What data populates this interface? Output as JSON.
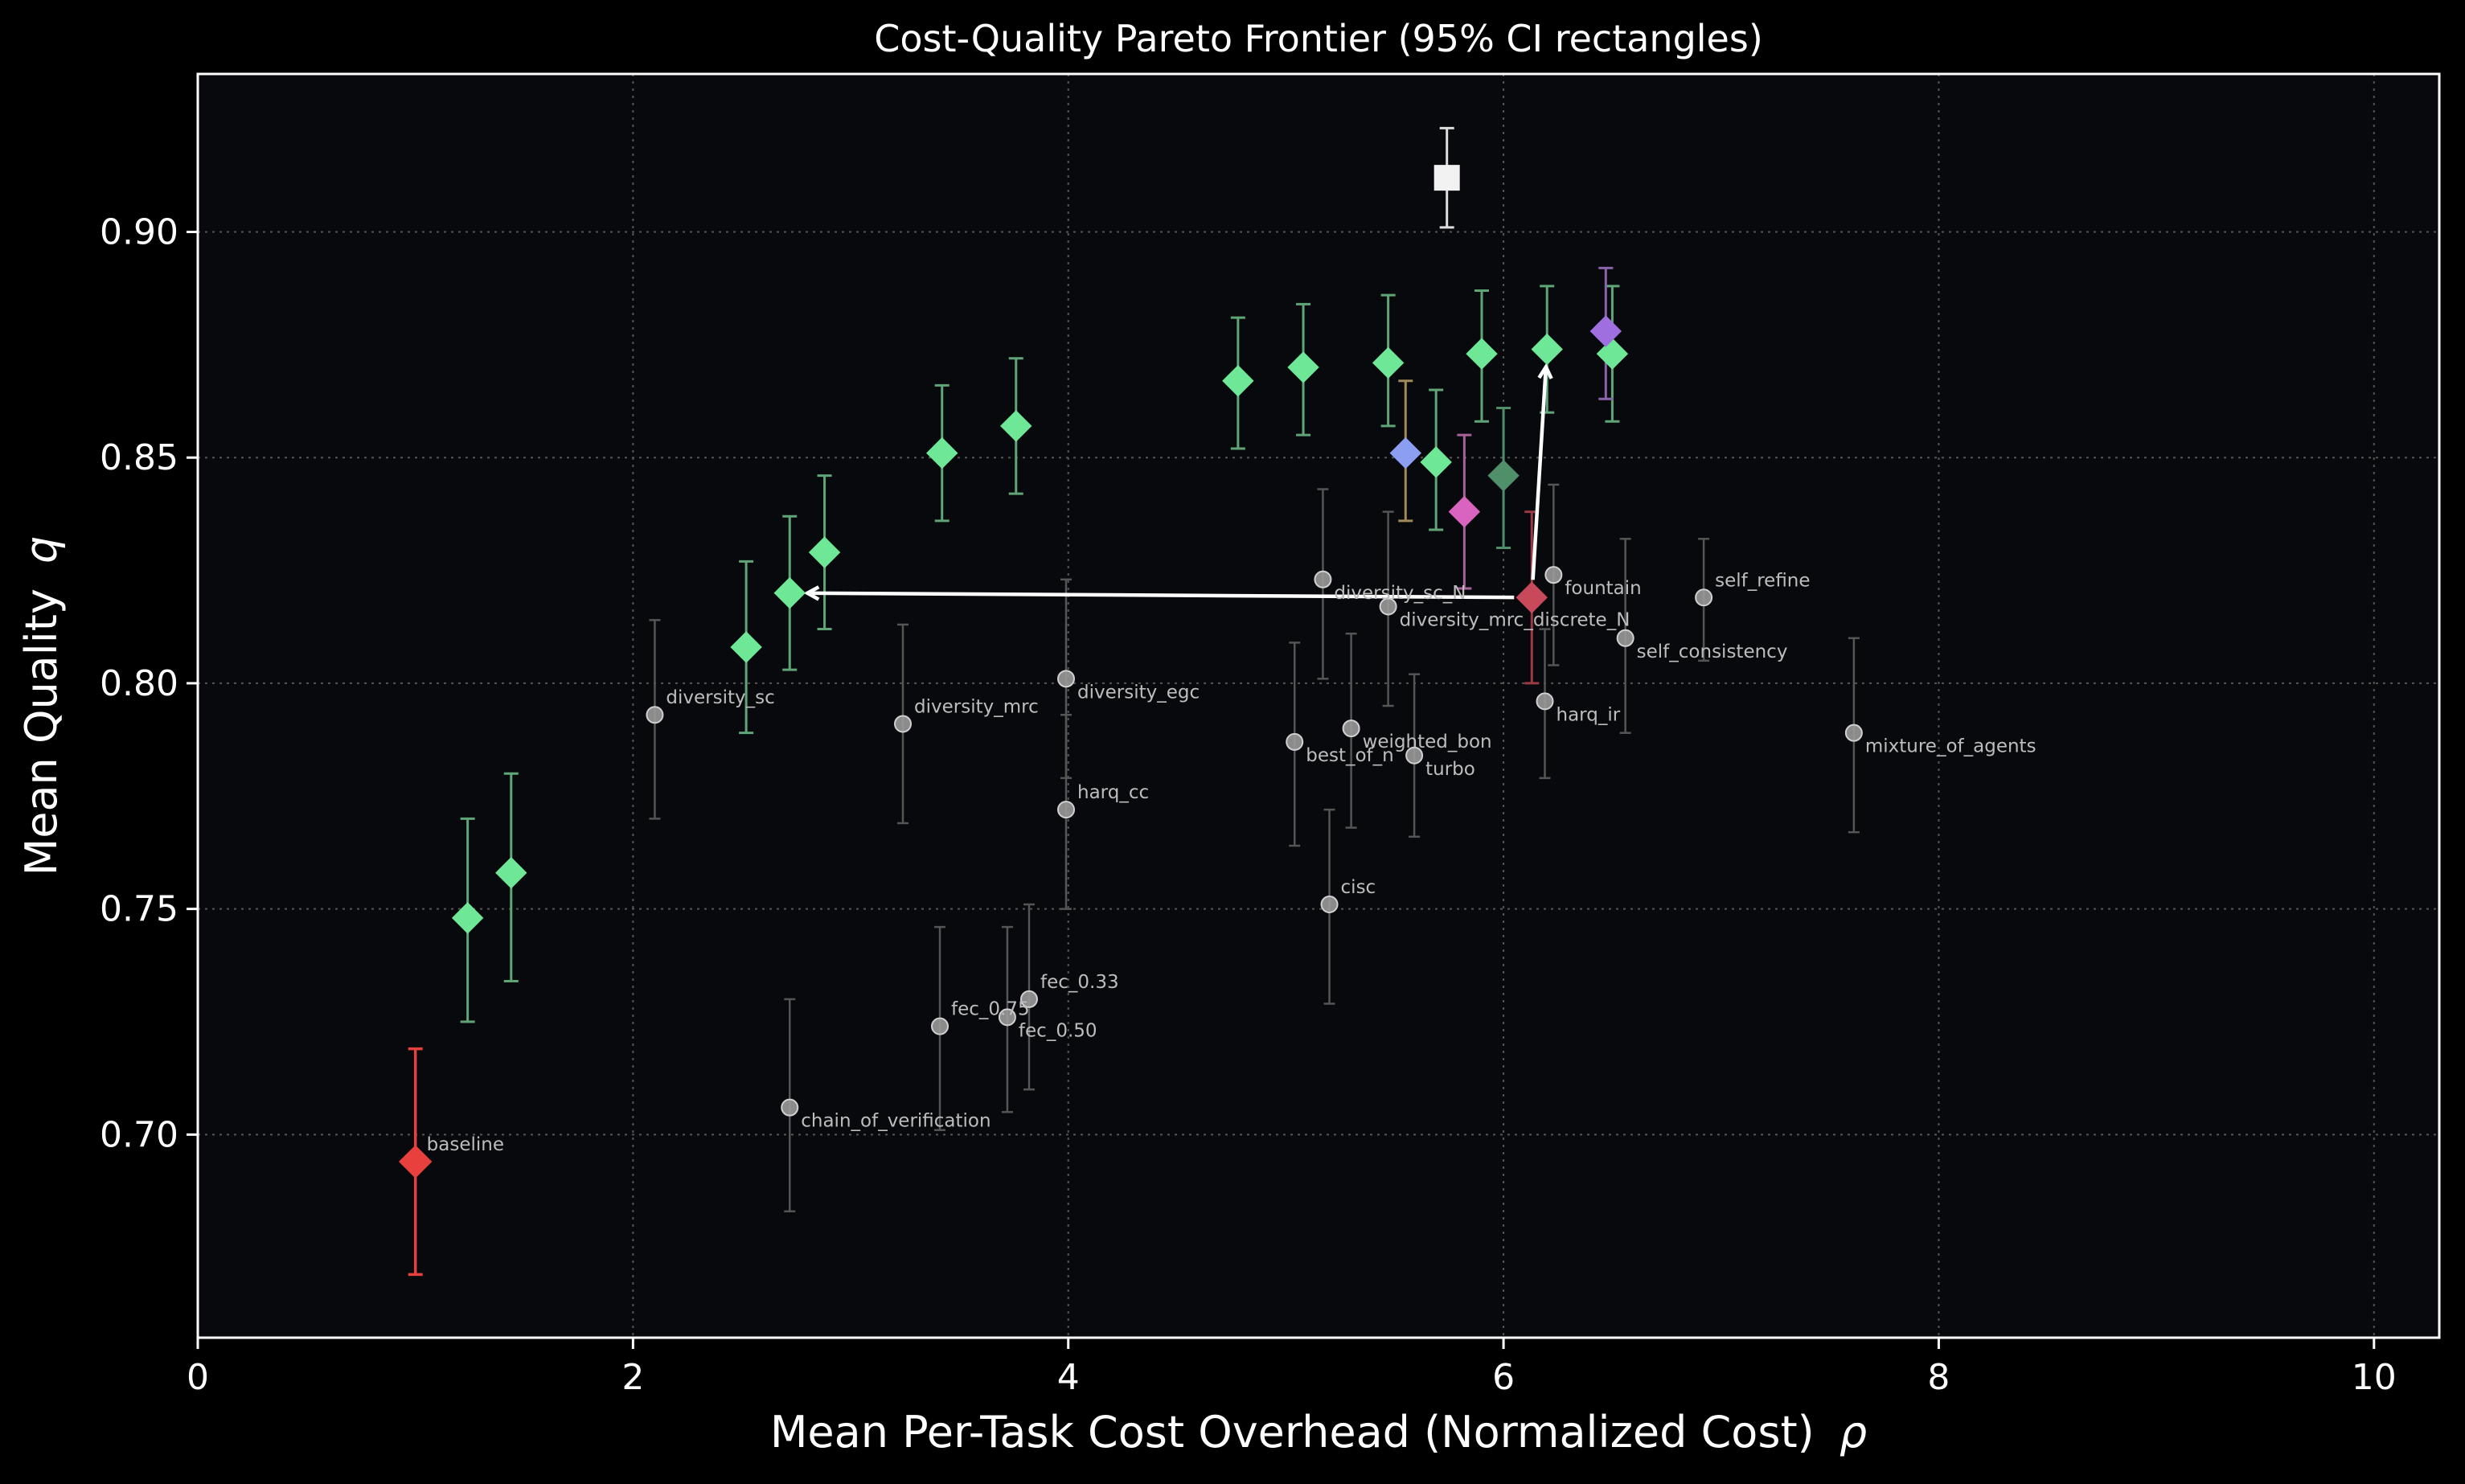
{
  "chart_data": {
    "type": "scatter",
    "title": "Cost-Quality Pareto Frontier (95% CI rectangles)",
    "xlabel": {
      "text": "Mean Per-Task Cost Overhead (Normalized Cost)",
      "symbol": "ρ"
    },
    "ylabel": {
      "text": "Mean Quality",
      "symbol": "q"
    },
    "xlim": [
      0,
      10.3
    ],
    "ylim": [
      0.655,
      0.935
    ],
    "x_ticks": [
      0,
      2,
      4,
      6,
      8,
      10
    ],
    "x_tick_labels": [
      "0",
      "2",
      "4",
      "6",
      "8",
      "10"
    ],
    "y_ticks": [
      0.7,
      0.75,
      0.8,
      0.85,
      0.9
    ],
    "y_tick_labels": [
      "0.70",
      "0.75",
      "0.80",
      "0.85",
      "0.90"
    ],
    "grid": true,
    "grid_style": "dotted",
    "colors": {
      "background": "#000000",
      "plot_background": "#08090c",
      "axes": "#ffffff",
      "grid": "#555555",
      "baseline": "#e8403c",
      "pareto_green": "#6ee797",
      "pareto_green_error": "#5fa578",
      "gray_point": "#9a9a9a",
      "gray_error": "#555555",
      "label": "#bdbdbd",
      "arrow": "#ffffff"
    },
    "series": [
      {
        "group": "baseline",
        "marker": "diamond",
        "points": [
          {
            "x": 1.0,
            "y": 0.694,
            "lo": 0.669,
            "hi": 0.719,
            "label": "baseline",
            "color": "#e8403c"
          }
        ]
      },
      {
        "group": "pareto-green",
        "marker": "diamond",
        "points": [
          {
            "x": 1.24,
            "y": 0.748,
            "lo": 0.725,
            "hi": 0.77
          },
          {
            "x": 1.44,
            "y": 0.758,
            "lo": 0.734,
            "hi": 0.78
          },
          {
            "x": 2.52,
            "y": 0.808,
            "lo": 0.789,
            "hi": 0.827
          },
          {
            "x": 2.72,
            "y": 0.82,
            "lo": 0.803,
            "hi": 0.837
          },
          {
            "x": 2.88,
            "y": 0.829,
            "lo": 0.812,
            "hi": 0.846
          },
          {
            "x": 3.42,
            "y": 0.851,
            "lo": 0.836,
            "hi": 0.866
          },
          {
            "x": 3.76,
            "y": 0.857,
            "lo": 0.842,
            "hi": 0.872
          },
          {
            "x": 4.78,
            "y": 0.867,
            "lo": 0.852,
            "hi": 0.881
          },
          {
            "x": 5.08,
            "y": 0.87,
            "lo": 0.855,
            "hi": 0.884
          },
          {
            "x": 5.47,
            "y": 0.871,
            "lo": 0.857,
            "hi": 0.886
          },
          {
            "x": 5.69,
            "y": 0.849,
            "lo": 0.834,
            "hi": 0.865
          },
          {
            "x": 5.9,
            "y": 0.873,
            "lo": 0.858,
            "hi": 0.887
          },
          {
            "x": 6.2,
            "y": 0.874,
            "lo": 0.86,
            "hi": 0.888
          },
          {
            "x": 6.5,
            "y": 0.873,
            "lo": 0.858,
            "hi": 0.888
          }
        ]
      },
      {
        "group": "highlight",
        "marker": "diamond",
        "points": [
          {
            "x": 5.55,
            "y": 0.851,
            "lo": 0.836,
            "hi": 0.867,
            "color": "#8b9ef2",
            "error_color": "#a08a5a"
          },
          {
            "x": 5.82,
            "y": 0.838,
            "lo": 0.821,
            "hi": 0.855,
            "color": "#d964c0",
            "error_color": "#a8629a"
          },
          {
            "x": 6.0,
            "y": 0.846,
            "lo": 0.83,
            "hi": 0.861,
            "color": "#4f8f6a",
            "error_color": "#4f8f6a"
          },
          {
            "x": 6.13,
            "y": 0.819,
            "lo": 0.8,
            "hi": 0.838,
            "color": "#c84a5a",
            "error_color": "#9a3a44"
          },
          {
            "x": 6.47,
            "y": 0.878,
            "lo": 0.863,
            "hi": 0.892,
            "color": "#9f6fe0",
            "error_color": "#8a64a8"
          },
          {
            "x": 5.74,
            "y": 0.912,
            "lo": 0.901,
            "hi": 0.923,
            "color": "#f2f2f2",
            "error_color": "#dddddd",
            "marker": "square"
          }
        ]
      },
      {
        "group": "other-methods",
        "marker": "circle",
        "points": [
          {
            "x": 2.1,
            "y": 0.793,
            "lo": 0.77,
            "hi": 0.814,
            "label": "diversity_sc",
            "label_pos": "above"
          },
          {
            "x": 2.72,
            "y": 0.706,
            "lo": 0.683,
            "hi": 0.73,
            "label": "chain_of_verification",
            "label_pos": "below"
          },
          {
            "x": 3.24,
            "y": 0.791,
            "lo": 0.769,
            "hi": 0.813,
            "label": "diversity_mrc",
            "label_pos": "above"
          },
          {
            "x": 3.41,
            "y": 0.724,
            "lo": 0.701,
            "hi": 0.746,
            "label": "fec_0.75",
            "label_pos": "above"
          },
          {
            "x": 3.72,
            "y": 0.726,
            "lo": 0.705,
            "hi": 0.746,
            "label": "fec_0.50",
            "label_pos": "below"
          },
          {
            "x": 3.82,
            "y": 0.73,
            "lo": 0.71,
            "hi": 0.751,
            "label": "fec_0.33",
            "label_pos": "above"
          },
          {
            "x": 3.99,
            "y": 0.801,
            "lo": 0.779,
            "hi": 0.823,
            "label": "diversity_egc",
            "label_pos": "below"
          },
          {
            "x": 3.99,
            "y": 0.772,
            "lo": 0.75,
            "hi": 0.793,
            "label": "harq_cc",
            "label_pos": "above"
          },
          {
            "x": 5.04,
            "y": 0.787,
            "lo": 0.764,
            "hi": 0.809,
            "label": "best_of_n",
            "label_pos": "below"
          },
          {
            "x": 5.17,
            "y": 0.823,
            "lo": 0.801,
            "hi": 0.843,
            "label": "diversity_sc_N",
            "label_pos": "below"
          },
          {
            "x": 5.2,
            "y": 0.751,
            "lo": 0.729,
            "hi": 0.772,
            "label": "cisc",
            "label_pos": "above"
          },
          {
            "x": 5.3,
            "y": 0.79,
            "lo": 0.768,
            "hi": 0.811,
            "label": "weighted_bon",
            "label_pos": "below"
          },
          {
            "x": 5.47,
            "y": 0.817,
            "lo": 0.795,
            "hi": 0.838,
            "label": "diversity_mrc_discrete_N",
            "label_pos": "below"
          },
          {
            "x": 5.59,
            "y": 0.784,
            "lo": 0.766,
            "hi": 0.802,
            "label": "turbo",
            "label_pos": "below"
          },
          {
            "x": 6.19,
            "y": 0.796,
            "lo": 0.779,
            "hi": 0.812,
            "label": "harq_ir",
            "label_pos": "below"
          },
          {
            "x": 6.23,
            "y": 0.824,
            "lo": 0.804,
            "hi": 0.844,
            "label": "fountain",
            "label_pos": "below"
          },
          {
            "x": 6.56,
            "y": 0.81,
            "lo": 0.789,
            "hi": 0.832,
            "label": "self_consistency",
            "label_pos": "below"
          },
          {
            "x": 6.92,
            "y": 0.819,
            "lo": 0.805,
            "hi": 0.832,
            "label": "self_refine",
            "label_pos": "above"
          },
          {
            "x": 7.61,
            "y": 0.789,
            "lo": 0.767,
            "hi": 0.81,
            "label": "mixture_of_agents",
            "label_pos": "below"
          }
        ]
      }
    ],
    "arrows": [
      {
        "from": [
          6.13,
          0.819
        ],
        "to": [
          2.72,
          0.82
        ]
      },
      {
        "from": [
          6.13,
          0.819
        ],
        "to": [
          6.2,
          0.874
        ]
      }
    ]
  }
}
